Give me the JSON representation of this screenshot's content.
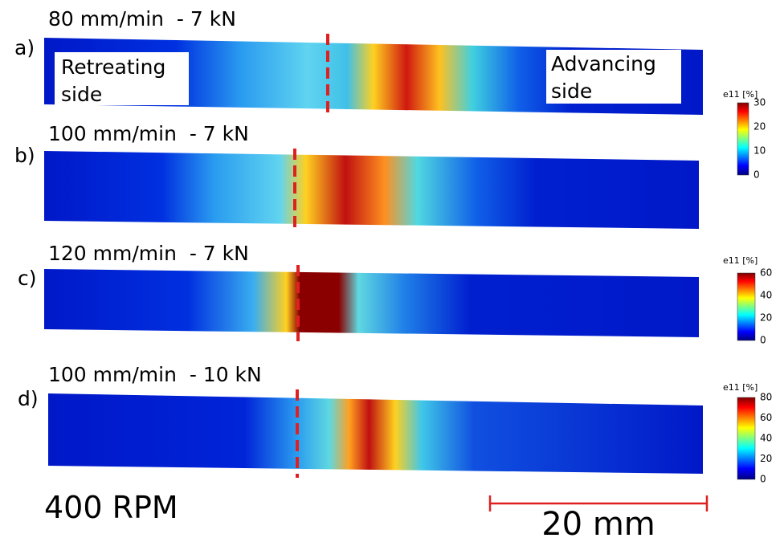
{
  "panels": [
    {
      "letter": "a)",
      "title": "80 mm/min  - 7 kN",
      "colorbar": {
        "label": "e11 [%]",
        "ticks": [
          30,
          20,
          10,
          0
        ]
      }
    },
    {
      "letter": "b)",
      "title": "100 mm/min  - 7 kN"
    },
    {
      "letter": "c)",
      "title": "120 mm/min  - 7 kN",
      "colorbar": {
        "label": "e11 [%]",
        "ticks": [
          60,
          40,
          20,
          0
        ]
      }
    },
    {
      "letter": "d)",
      "title": "100 mm/min  - 10 kN",
      "colorbar": {
        "label": "e11 [%]",
        "ticks": [
          80,
          60,
          40,
          20,
          0
        ]
      }
    }
  ],
  "annotations": {
    "retreating": [
      "Retreating",
      "side"
    ],
    "advancing": [
      "Advancing",
      "side"
    ],
    "speed": "400 RPM",
    "scale": "20 mm"
  }
}
